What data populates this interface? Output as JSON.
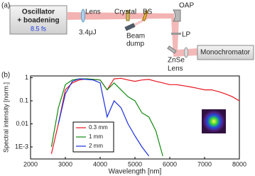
{
  "diagram": {
    "panel_a": "(a)",
    "panel_b": "(b)",
    "oscillator": {
      "line1": "Oscillator",
      "line2": "+ boadening",
      "pulse": "8.5 fs"
    },
    "lens": "Lens",
    "energy": "3.4μJ",
    "crystal": "Crystal",
    "bs": "BS",
    "oap": "OAP",
    "beam_dump": {
      "line1": "Beam",
      "line2": "dump"
    },
    "lp": "LP",
    "znse_lens": {
      "line1": "ZnSe",
      "line2": "Lens"
    },
    "monochromator": "Monochromator"
  },
  "chart_data": {
    "type": "line",
    "log_y": true,
    "x_label": "Wavelength [nm]",
    "y_label": "Spectral intensity [norm.]",
    "x": [
      2600,
      2800,
      3000,
      3200,
      3400,
      3600,
      3800,
      4000,
      4200,
      4400,
      4600,
      4800,
      5000,
      5200,
      5400,
      5600,
      5800,
      6000,
      6200,
      6400,
      6600,
      6800,
      7000,
      7200,
      7400,
      7600,
      7800,
      8000
    ],
    "series": [
      {
        "name": "0.3 mm",
        "color": "#e8141e",
        "values": [
          0.0005,
          0.01,
          0.3,
          0.6,
          0.8,
          0.9,
          0.85,
          0.8,
          0.3,
          0.9,
          0.95,
          0.8,
          0.7,
          0.8,
          0.85,
          0.7,
          0.6,
          0.5,
          0.5,
          0.45,
          0.4,
          0.35,
          0.3,
          0.3,
          0.25,
          0.2,
          0.15,
          0.1
        ]
      },
      {
        "name": "1 mm",
        "color": "#108a10",
        "values": [
          0.001,
          0.05,
          0.5,
          0.8,
          0.9,
          0.9,
          0.85,
          0.8,
          0.3,
          0.6,
          0.3,
          0.15,
          0.1,
          0.03,
          0.02,
          0.005,
          0.0004,
          null,
          null,
          null,
          null,
          null,
          null,
          null,
          null,
          null,
          null,
          null
        ]
      },
      {
        "name": "2 mm",
        "color": "#1a2ee0",
        "values": [
          null,
          0.01,
          0.2,
          0.7,
          0.9,
          0.85,
          0.8,
          0.6,
          0.02,
          0.1,
          0.05,
          0.01,
          0.003,
          0.001,
          0.0004,
          null,
          null,
          null,
          null,
          null,
          null,
          null,
          null,
          null,
          null,
          null,
          null,
          null
        ]
      }
    ],
    "xlim": [
      2000,
      8000
    ],
    "xticks": [
      2000,
      3000,
      4000,
      5000,
      6000,
      7000,
      8000
    ],
    "ylim": [
      0.0003,
      1.2
    ],
    "yticks": [
      {
        "value": 0.001,
        "label": "1E-3"
      },
      0.01,
      0.1,
      1
    ]
  }
}
